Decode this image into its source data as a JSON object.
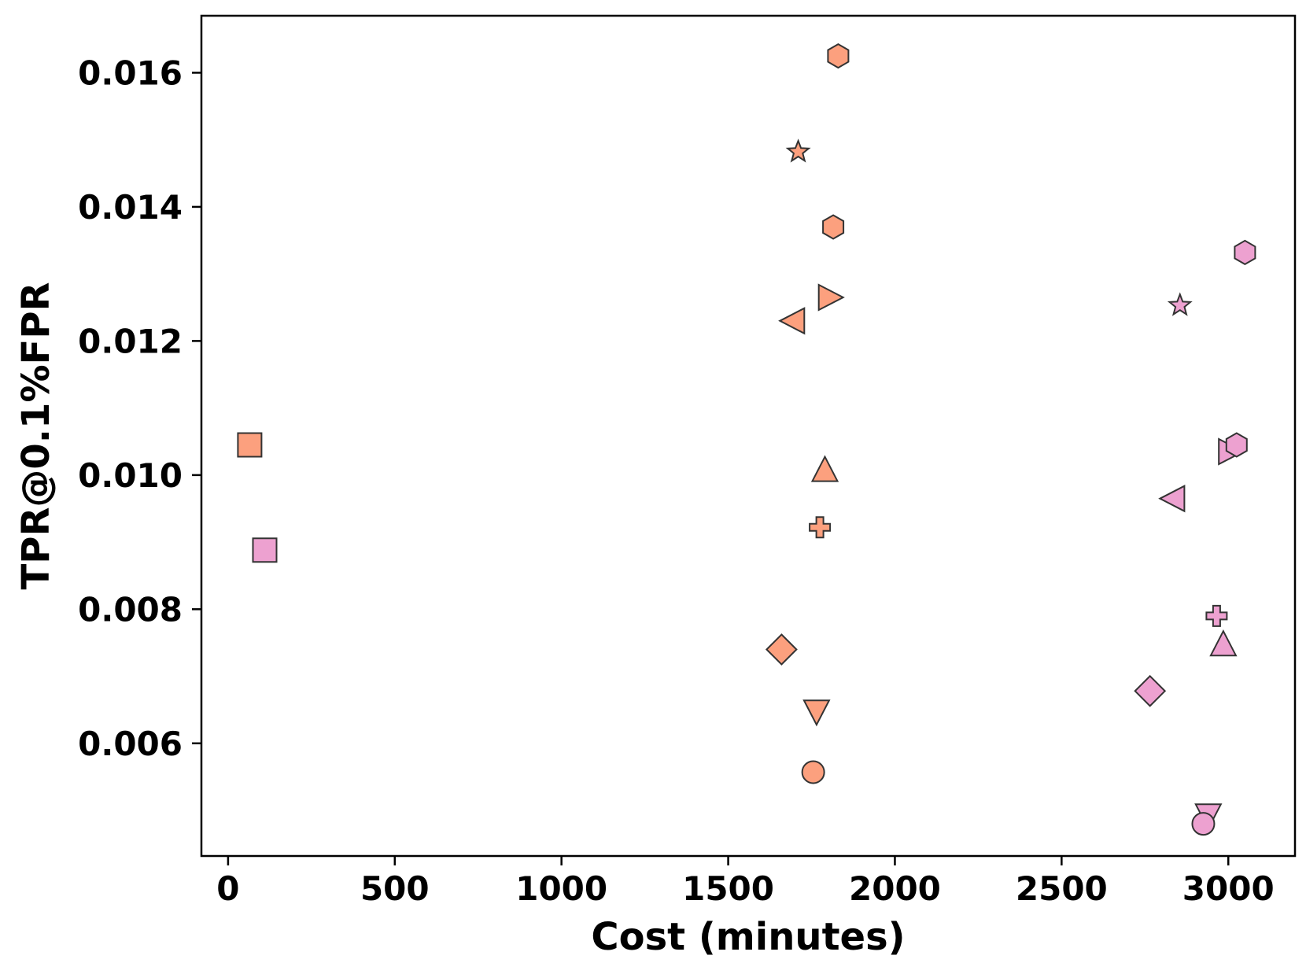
{
  "chart_data": {
    "type": "scatter",
    "title": "",
    "xlabel": "Cost (minutes)",
    "ylabel": "TPR@0.1%FPR",
    "xlim": [
      -80,
      3200
    ],
    "ylim": [
      0.00432,
      0.01685
    ],
    "xticks": [
      0,
      500,
      1000,
      1500,
      2000,
      2500,
      3000
    ],
    "yticks": [
      0.006,
      0.008,
      0.01,
      0.012,
      0.014,
      0.016
    ],
    "ytick_labels": [
      "0.006",
      "0.008",
      "0.010",
      "0.012",
      "0.014",
      "0.016"
    ],
    "grid": false,
    "legend": false,
    "colors": {
      "orange": "#FCA07E",
      "pink": "#EDA1D0",
      "edge": "#333333"
    },
    "series": [
      {
        "color": "orange",
        "points": [
          {
            "x": 1830,
            "y": 0.01625,
            "marker": "hexagon"
          },
          {
            "x": 1710,
            "y": 0.01482,
            "marker": "star"
          },
          {
            "x": 1815,
            "y": 0.0137,
            "marker": "hexagon"
          },
          {
            "x": 1800,
            "y": 0.01265,
            "marker": "triangle-right"
          },
          {
            "x": 1700,
            "y": 0.0123,
            "marker": "triangle-left"
          },
          {
            "x": 65,
            "y": 0.01045,
            "marker": "square"
          },
          {
            "x": 1790,
            "y": 0.01005,
            "marker": "triangle-up"
          },
          {
            "x": 1775,
            "y": 0.00922,
            "marker": "plus"
          },
          {
            "x": 1660,
            "y": 0.0074,
            "marker": "diamond"
          },
          {
            "x": 1765,
            "y": 0.0065,
            "marker": "triangle-down"
          },
          {
            "x": 1755,
            "y": 0.00557,
            "marker": "circle"
          }
        ]
      },
      {
        "color": "pink",
        "points": [
          {
            "x": 3050,
            "y": 0.01332,
            "marker": "hexagon"
          },
          {
            "x": 2855,
            "y": 0.01253,
            "marker": "star"
          },
          {
            "x": 3000,
            "y": 0.01035,
            "marker": "triangle-right"
          },
          {
            "x": 3025,
            "y": 0.01045,
            "marker": "hexagon"
          },
          {
            "x": 2840,
            "y": 0.00965,
            "marker": "triangle-left"
          },
          {
            "x": 110,
            "y": 0.00888,
            "marker": "square"
          },
          {
            "x": 2965,
            "y": 0.0079,
            "marker": "plus"
          },
          {
            "x": 2985,
            "y": 0.00745,
            "marker": "triangle-up"
          },
          {
            "x": 2765,
            "y": 0.00678,
            "marker": "diamond"
          },
          {
            "x": 2940,
            "y": 0.00495,
            "marker": "triangle-down"
          },
          {
            "x": 2925,
            "y": 0.0048,
            "marker": "circle"
          }
        ]
      }
    ]
  }
}
